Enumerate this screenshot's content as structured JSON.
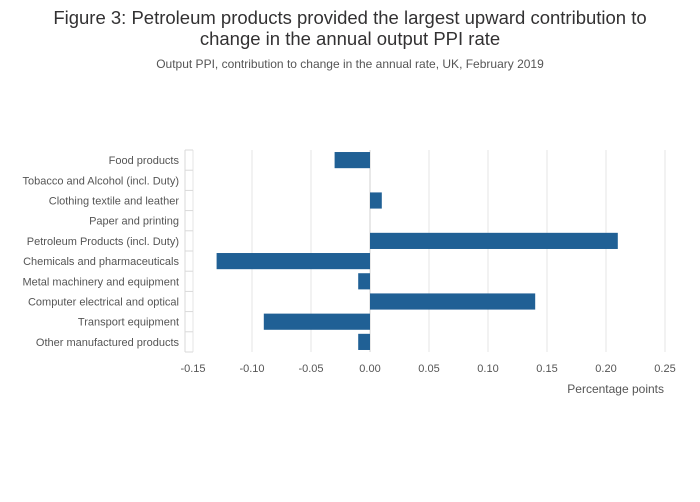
{
  "chart_data": {
    "type": "bar",
    "orientation": "horizontal",
    "title": "Figure 3: Petroleum products provided the largest upward contribution to change in the annual output PPI rate",
    "title_lines": [
      "Figure 3: Petroleum products provided the largest upward contribution to",
      "change in the annual output PPI rate"
    ],
    "subtitle": "Output PPI, contribution to change in the annual rate, UK, February 2019",
    "xlabel": "Percentage points",
    "ylabel": "",
    "xlim": [
      -0.15,
      0.25
    ],
    "xticks": [
      -0.15,
      -0.1,
      -0.05,
      0,
      0.05,
      0.1,
      0.15,
      0.2,
      0.25
    ],
    "xtick_labels": [
      "-0.15",
      "-0.10",
      "-0.05",
      "0.00",
      "0.05",
      "0.10",
      "0.15",
      "0.20",
      "0.25"
    ],
    "grid": true,
    "bar_color": "#206095",
    "categories": [
      "Food products",
      "Tobacco and Alcohol (incl. Duty)",
      "Clothing textile and leather",
      "Paper and printing",
      "Petroleum Products (incl. Duty)",
      "Chemicals and pharmaceuticals",
      "Metal machinery and equipment",
      "Computer electrical and optical",
      "Transport equipment",
      "Other manufactured products"
    ],
    "values": [
      -0.03,
      0.0,
      0.01,
      0.0,
      0.21,
      -0.13,
      -0.01,
      0.14,
      -0.09,
      -0.01
    ]
  }
}
